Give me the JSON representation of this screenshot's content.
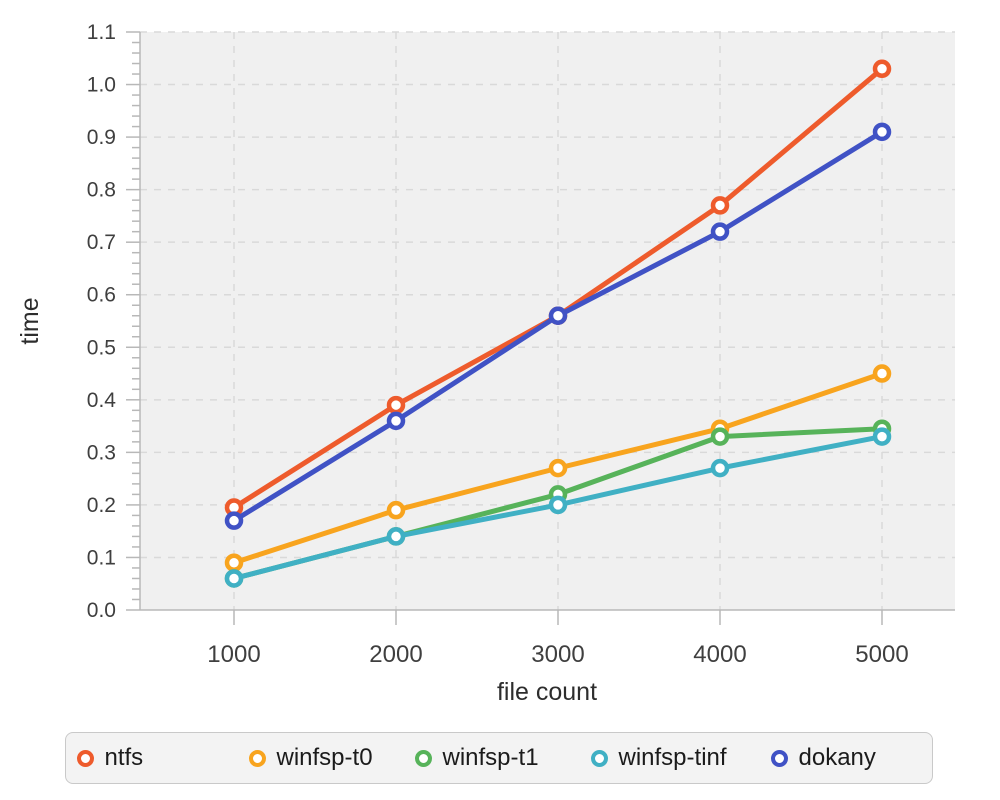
{
  "chart_data": {
    "type": "line",
    "title": "",
    "xlabel": "file count",
    "ylabel": "time",
    "x": [
      1000,
      2000,
      3000,
      4000,
      5000
    ],
    "x_tick_labels": [
      "1000",
      "2000",
      "3000",
      "4000",
      "5000"
    ],
    "y_tick_labels": [
      "0.0",
      "0.1",
      "0.2",
      "0.3",
      "0.4",
      "0.5",
      "0.6",
      "0.7",
      "0.8",
      "0.9",
      "1.0",
      "1.1"
    ],
    "ylim": [
      0,
      1.1
    ],
    "y_major_step": 0.1,
    "y_minor_step": 0.02,
    "grid": "dashed",
    "legend_position": "bottom",
    "marker": "open-circle",
    "series": [
      {
        "name": "ntfs",
        "color": "#ee5b2c",
        "values": [
          0.195,
          0.39,
          0.56,
          0.77,
          1.03
        ]
      },
      {
        "name": "winfsp-t0",
        "color": "#f8a41e",
        "values": [
          0.09,
          0.19,
          0.27,
          0.345,
          0.45
        ]
      },
      {
        "name": "winfsp-t1",
        "color": "#57b35a",
        "values": [
          0.06,
          0.14,
          0.22,
          0.33,
          0.345
        ]
      },
      {
        "name": "winfsp-tinf",
        "color": "#40b0c4",
        "values": [
          0.06,
          0.14,
          0.2,
          0.27,
          0.33
        ]
      },
      {
        "name": "dokany",
        "color": "#4052c5",
        "values": [
          0.17,
          0.36,
          0.56,
          0.72,
          0.91
        ]
      }
    ]
  },
  "colors": {
    "page_bg": "#ffffff",
    "plot_bg": "#f0f0f0",
    "grid": "#d9d9d9",
    "axis": "#b8b8b8",
    "tick_label": "#3f3f3f",
    "axis_label": "#2d2d2d",
    "legend_bg": "#f3f3f3",
    "legend_border": "#c9c9c9",
    "legend_text": "#1b1b1b",
    "marker_fill": "#ffffff"
  }
}
